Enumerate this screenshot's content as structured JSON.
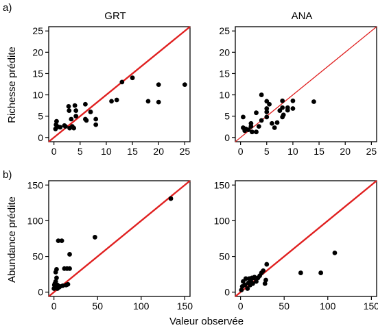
{
  "figure": {
    "panel_labels": [
      "a)",
      "b)"
    ],
    "xlabel": "Valeur observée",
    "ylabel_top": "Richesse prédite",
    "ylabel_bottom": "Abundance prédite",
    "col_titles": [
      "GRT",
      "ANA"
    ]
  },
  "colors": {
    "points": "#000000",
    "identity_line": "#e02020",
    "axes": "#000000"
  },
  "chart_data": [
    {
      "type": "scatter",
      "title": "GRT",
      "panel_label": "a)",
      "ylabel": "Richesse prédite",
      "xlim": [
        -1,
        26
      ],
      "ylim": [
        -1,
        26
      ],
      "xticks": [
        0,
        5,
        10,
        15,
        20,
        25
      ],
      "yticks": [
        0,
        5,
        10,
        15,
        20,
        25
      ],
      "reference_line": "y = x",
      "grid": false,
      "points": [
        [
          0.3,
          2.0
        ],
        [
          0.4,
          3.0
        ],
        [
          0.5,
          3.8
        ],
        [
          0.8,
          2.5
        ],
        [
          1.2,
          2.4
        ],
        [
          2.0,
          2.8
        ],
        [
          2.2,
          2.6
        ],
        [
          2.8,
          7.3
        ],
        [
          2.9,
          6.3
        ],
        [
          3.0,
          2.2
        ],
        [
          3.3,
          4.3
        ],
        [
          3.5,
          2.6
        ],
        [
          3.8,
          2.2
        ],
        [
          4.0,
          7.5
        ],
        [
          4.2,
          5.0
        ],
        [
          4.2,
          6.3
        ],
        [
          6.0,
          7.8
        ],
        [
          6.0,
          4.3
        ],
        [
          6.2,
          4.0
        ],
        [
          7.0,
          6.0
        ],
        [
          8.0,
          4.3
        ],
        [
          8.0,
          3.0
        ],
        [
          11.0,
          8.5
        ],
        [
          12.0,
          8.8
        ],
        [
          13.0,
          13.0
        ],
        [
          15.0,
          14.0
        ],
        [
          18.0,
          8.5
        ],
        [
          20.0,
          12.4
        ],
        [
          20.0,
          8.3
        ],
        [
          25.0,
          12.4
        ]
      ]
    },
    {
      "type": "scatter",
      "title": "ANA",
      "xlim": [
        -1,
        26
      ],
      "ylim": [
        -1,
        26
      ],
      "xticks": [
        0,
        5,
        10,
        15,
        20,
        25
      ],
      "yticks": [
        0,
        5,
        10,
        15,
        20,
        25
      ],
      "reference_line": "y = x",
      "grid": false,
      "points": [
        [
          0.5,
          2.3
        ],
        [
          0.5,
          4.8
        ],
        [
          0.8,
          1.6
        ],
        [
          1.0,
          2.0
        ],
        [
          1.5,
          1.8
        ],
        [
          2.0,
          3.3
        ],
        [
          2.0,
          2.6
        ],
        [
          2.2,
          1.3
        ],
        [
          3.0,
          5.8
        ],
        [
          3.0,
          1.3
        ],
        [
          3.5,
          2.6
        ],
        [
          4.0,
          10.0
        ],
        [
          4.0,
          4.0
        ],
        [
          5.0,
          8.5
        ],
        [
          5.0,
          6.8
        ],
        [
          5.0,
          6.0
        ],
        [
          5.0,
          4.8
        ],
        [
          5.5,
          7.8
        ],
        [
          6.0,
          3.3
        ],
        [
          6.5,
          2.3
        ],
        [
          7.0,
          3.5
        ],
        [
          7.5,
          6.3
        ],
        [
          8.0,
          8.6
        ],
        [
          8.0,
          7.0
        ],
        [
          8.0,
          4.8
        ],
        [
          8.2,
          5.3
        ],
        [
          9.0,
          7.0
        ],
        [
          9.0,
          6.4
        ],
        [
          10.0,
          8.6
        ],
        [
          10.0,
          6.8
        ],
        [
          14.0,
          8.4
        ]
      ]
    },
    {
      "type": "scatter",
      "panel_label": "b)",
      "ylabel": "Abundance prédite",
      "xlim": [
        -6,
        156
      ],
      "ylim": [
        -6,
        156
      ],
      "xticks": [
        0,
        50,
        100,
        150
      ],
      "yticks": [
        0,
        50,
        100,
        150
      ],
      "reference_line": "y = x",
      "grid": false,
      "points": [
        [
          0.0,
          5.0
        ],
        [
          0.5,
          10.0
        ],
        [
          1.0,
          8.0
        ],
        [
          1.0,
          12.0
        ],
        [
          2.0,
          28.0
        ],
        [
          2.0,
          15.0
        ],
        [
          3.0,
          32.0
        ],
        [
          3.0,
          20.0
        ],
        [
          4.0,
          10.0
        ],
        [
          4.0,
          5.0
        ],
        [
          5.0,
          72.0
        ],
        [
          6.0,
          7.0
        ],
        [
          7.0,
          8.0
        ],
        [
          9.0,
          72.0
        ],
        [
          10.0,
          9.0
        ],
        [
          12.0,
          33.0
        ],
        [
          14.0,
          10.0
        ],
        [
          15.0,
          33.0
        ],
        [
          16.0,
          11.0
        ],
        [
          18.0,
          33.0
        ],
        [
          18.0,
          53.0
        ],
        [
          47.0,
          77.0
        ],
        [
          134.0,
          131.0
        ]
      ]
    },
    {
      "type": "scatter",
      "xlim": [
        -6,
        156
      ],
      "ylim": [
        -6,
        156
      ],
      "xticks": [
        0,
        50,
        100,
        150
      ],
      "yticks": [
        0,
        50,
        100,
        150
      ],
      "reference_line": "y = x",
      "grid": false,
      "points": [
        [
          1.0,
          3.0
        ],
        [
          2.0,
          8.0
        ],
        [
          3.0,
          15.0
        ],
        [
          5.0,
          10.0
        ],
        [
          6.0,
          19.0
        ],
        [
          8.0,
          5.0
        ],
        [
          9.0,
          13.0
        ],
        [
          10.0,
          19.0
        ],
        [
          11.0,
          10.0
        ],
        [
          12.0,
          15.0
        ],
        [
          13.0,
          20.0
        ],
        [
          14.0,
          12.0
        ],
        [
          15.0,
          20.0
        ],
        [
          16.0,
          21.0
        ],
        [
          18.0,
          15.0
        ],
        [
          20.0,
          20.0
        ],
        [
          22.0,
          23.0
        ],
        [
          24.0,
          27.0
        ],
        [
          26.0,
          30.0
        ],
        [
          28.0,
          12.0
        ],
        [
          29.0,
          17.0
        ],
        [
          30.0,
          39.0
        ],
        [
          69.0,
          27.0
        ],
        [
          92.0,
          27.0
        ],
        [
          108.0,
          55.0
        ]
      ]
    }
  ]
}
